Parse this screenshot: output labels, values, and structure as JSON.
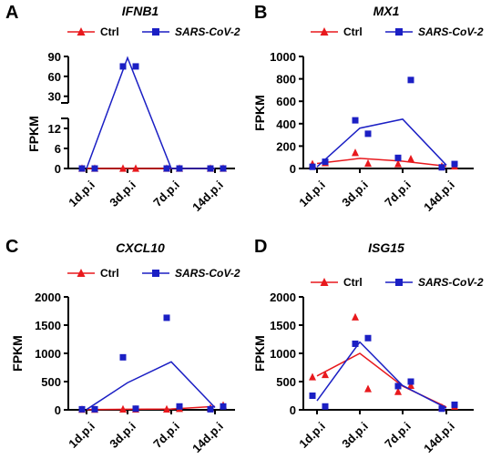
{
  "figure": {
    "legend_ctrl": "Ctrl",
    "legend_sars": "SARS-CoV-2",
    "colors": {
      "ctrl": "#e8191d",
      "sars": "#1b1fc4"
    }
  },
  "chart_data": [
    {
      "type": "line",
      "panel": "A",
      "title": "IFNB1",
      "ylabel": "FPKM",
      "categories": [
        "1d.p.i",
        "3d.p.i",
        "7d.p.i",
        "14d.p.i"
      ],
      "ylim": [
        0,
        90
      ],
      "broken_axis": {
        "lower": [
          0,
          15
        ],
        "upper": [
          20,
          90
        ],
        "lower_ticks": [
          0,
          6,
          12
        ],
        "upper_ticks": [
          30,
          60,
          90
        ]
      },
      "series": [
        {
          "name": "Ctrl",
          "marker": "triangle",
          "mean": [
            0,
            0,
            0,
            0
          ],
          "points": [
            [
              0,
              0
            ],
            [
              0,
              0
            ],
            [
              0,
              0
            ],
            [
              0,
              0
            ]
          ]
        },
        {
          "name": "SARS-CoV-2",
          "marker": "square",
          "mean": [
            0,
            88,
            0,
            0
          ],
          "points": [
            [
              0,
              0
            ],
            [
              75,
              75
            ],
            [
              0,
              0
            ],
            [
              0,
              0
            ]
          ]
        }
      ]
    },
    {
      "type": "line",
      "panel": "B",
      "title": "MX1",
      "ylabel": "FPKM",
      "categories": [
        "1d.p.i",
        "3d.p.i",
        "7d.p.i",
        "14d.p.i"
      ],
      "ylim": [
        0,
        1000
      ],
      "yticks": [
        0,
        200,
        400,
        600,
        800,
        1000
      ],
      "series": [
        {
          "name": "Ctrl",
          "marker": "triangle",
          "mean": [
            45,
            90,
            65,
            20
          ],
          "points": [
            [
              40,
              50
            ],
            [
              140,
              45
            ],
            [
              40,
              85
            ],
            [
              20,
              20
            ]
          ]
        },
        {
          "name": "SARS-CoV-2",
          "marker": "square",
          "mean": [
            15,
            360,
            440,
            30
          ],
          "points": [
            [
              15,
              60
            ],
            [
              430,
              310
            ],
            [
              95,
              790
            ],
            [
              10,
              40
            ]
          ]
        }
      ]
    },
    {
      "type": "line",
      "panel": "C",
      "title": "CXCL10",
      "ylabel": "FPKM",
      "categories": [
        "1d.p.i",
        "3d.p.i",
        "7d.p.i",
        "14d.p.i"
      ],
      "ylim": [
        0,
        2000
      ],
      "yticks": [
        0,
        500,
        1000,
        1500,
        2000
      ],
      "series": [
        {
          "name": "Ctrl",
          "marker": "triangle",
          "mean": [
            5,
            10,
            15,
            60
          ],
          "points": [
            [
              5,
              5
            ],
            [
              10,
              10
            ],
            [
              10,
              20
            ],
            [
              30,
              80
            ]
          ]
        },
        {
          "name": "SARS-CoV-2",
          "marker": "square",
          "mean": [
            5,
            480,
            850,
            40
          ],
          "points": [
            [
              10,
              10
            ],
            [
              930,
              20
            ],
            [
              1630,
              60
            ],
            [
              10,
              60
            ]
          ]
        }
      ]
    },
    {
      "type": "line",
      "panel": "D",
      "title": "ISG15",
      "ylabel": "FPKM",
      "categories": [
        "1d.p.i",
        "3d.p.i",
        "7d.p.i",
        "14d.p.i"
      ],
      "ylim": [
        0,
        2000
      ],
      "yticks": [
        0,
        500,
        1000,
        1500,
        2000
      ],
      "series": [
        {
          "name": "Ctrl",
          "marker": "triangle",
          "mean": [
            600,
            1000,
            420,
            50
          ],
          "points": [
            [
              580,
              620
            ],
            [
              1640,
              370
            ],
            [
              320,
              430
            ],
            [
              40,
              60
            ]
          ]
        },
        {
          "name": "SARS-CoV-2",
          "marker": "square",
          "mean": [
            160,
            1200,
            430,
            30
          ],
          "points": [
            [
              250,
              60
            ],
            [
              1170,
              1270
            ],
            [
              420,
              500
            ],
            [
              20,
              90
            ]
          ]
        }
      ]
    }
  ]
}
